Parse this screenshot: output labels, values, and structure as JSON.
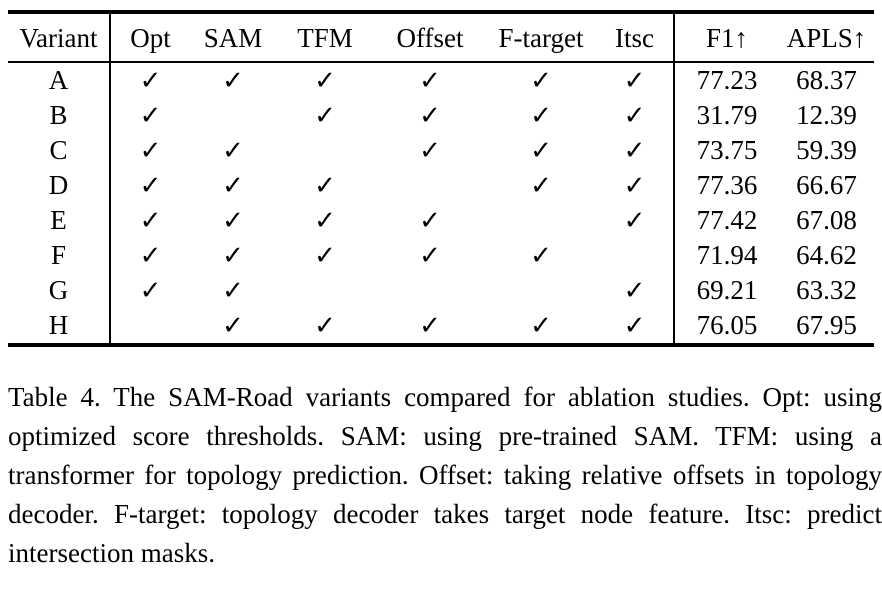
{
  "colors": {
    "background": "#ffffff",
    "text": "#000000",
    "rule": "#000000"
  },
  "table": {
    "columns": [
      "Variant",
      "Opt",
      "SAM",
      "TFM",
      "Offset",
      "F-target",
      "Itsc",
      "F1↑",
      "APLS↑"
    ],
    "check_glyph": "✓",
    "rows": [
      [
        "A",
        "✓",
        "✓",
        "✓",
        "✓",
        "✓",
        "✓",
        "77.23",
        "68.37"
      ],
      [
        "B",
        "✓",
        "",
        "✓",
        "✓",
        "✓",
        "✓",
        "31.79",
        "12.39"
      ],
      [
        "C",
        "✓",
        "✓",
        "",
        "✓",
        "✓",
        "✓",
        "73.75",
        "59.39"
      ],
      [
        "D",
        "✓",
        "✓",
        "✓",
        "",
        "✓",
        "✓",
        "77.36",
        "66.67"
      ],
      [
        "E",
        "✓",
        "✓",
        "✓",
        "✓",
        "",
        "✓",
        "77.42",
        "67.08"
      ],
      [
        "F",
        "✓",
        "✓",
        "✓",
        "✓",
        "✓",
        "",
        "71.94",
        "64.62"
      ],
      [
        "G",
        "✓",
        "✓",
        "",
        "",
        "",
        "✓",
        "69.21",
        "63.32"
      ],
      [
        "H",
        "",
        "✓",
        "✓",
        "✓",
        "✓",
        "✓",
        "76.05",
        "67.95"
      ]
    ]
  },
  "caption": {
    "text": "Table 4. The SAM-Road variants compared for ablation studies. Opt: using optimized score thresholds. SAM: using pre-trained SAM. TFM: using a transformer for topology prediction. Offset: taking relative offsets in topology decoder. F-target: topology de­coder takes target node feature. Itsc: predict intersection masks."
  }
}
